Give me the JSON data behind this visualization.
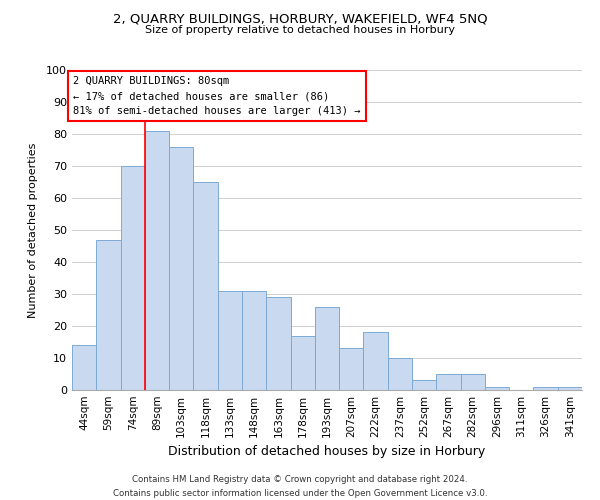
{
  "title": "2, QUARRY BUILDINGS, HORBURY, WAKEFIELD, WF4 5NQ",
  "subtitle": "Size of property relative to detached houses in Horbury",
  "xlabel": "Distribution of detached houses by size in Horbury",
  "ylabel": "Number of detached properties",
  "bar_color": "#c9d9f0",
  "bar_edge_color": "#7baad4",
  "categories": [
    "44sqm",
    "59sqm",
    "74sqm",
    "89sqm",
    "103sqm",
    "118sqm",
    "133sqm",
    "148sqm",
    "163sqm",
    "178sqm",
    "193sqm",
    "207sqm",
    "222sqm",
    "237sqm",
    "252sqm",
    "267sqm",
    "282sqm",
    "296sqm",
    "311sqm",
    "326sqm",
    "341sqm"
  ],
  "values": [
    14,
    47,
    70,
    81,
    76,
    65,
    31,
    31,
    29,
    17,
    26,
    13,
    18,
    10,
    3,
    5,
    5,
    1,
    0,
    1,
    1
  ],
  "ylim": [
    0,
    100
  ],
  "yticks": [
    0,
    10,
    20,
    30,
    40,
    50,
    60,
    70,
    80,
    90,
    100
  ],
  "property_line_x": 2.5,
  "annotation_title": "2 QUARRY BUILDINGS: 80sqm",
  "annotation_line1": "← 17% of detached houses are smaller (86)",
  "annotation_line2": "81% of semi-detached houses are larger (413) →",
  "footer_line1": "Contains HM Land Registry data © Crown copyright and database right 2024.",
  "footer_line2": "Contains public sector information licensed under the Open Government Licence v3.0.",
  "background_color": "#ffffff",
  "grid_color": "#d0d0d0"
}
